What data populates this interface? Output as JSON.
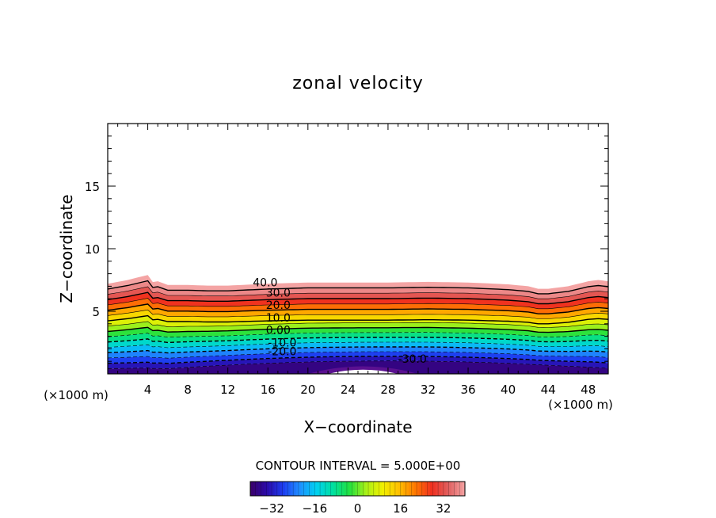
{
  "chart_data": {
    "type": "contour",
    "title": "zonal velocity",
    "xlabel": "X−coordinate",
    "ylabel": "Z−coordinate",
    "x_unit_left": "(×1000 m)",
    "x_unit_right": "(×1000 m)",
    "xlim": [
      0,
      50
    ],
    "ylim": [
      0,
      20
    ],
    "x_ticks": [
      4,
      8,
      12,
      16,
      20,
      24,
      28,
      32,
      36,
      40,
      44,
      48
    ],
    "y_ticks": [
      5,
      10,
      15
    ],
    "contour_interval_label": "CONTOUR INTERVAL = 5.000E+00",
    "contour_interval": 5.0,
    "contour_labels": [
      {
        "text": "40.0",
        "x": 14.5,
        "y": 7.3
      },
      {
        "text": "30.0",
        "x": 15.8,
        "y": 6.5
      },
      {
        "text": "20.0",
        "x": 15.8,
        "y": 5.5
      },
      {
        "text": "10.0",
        "x": 15.8,
        "y": 4.5
      },
      {
        "text": "0.00",
        "x": 15.8,
        "y": 3.5
      },
      {
        "text": "-10.0",
        "x": 16.0,
        "y": 2.5
      },
      {
        "text": "-20.0",
        "x": 16.0,
        "y": 1.8
      },
      {
        "text": "-30.0",
        "x": 29.0,
        "y": 1.2
      }
    ],
    "upper_boundary": {
      "x": [
        0,
        2,
        3,
        4,
        4.2,
        5,
        6,
        8,
        10,
        12,
        16,
        20,
        24,
        28,
        32,
        36,
        40,
        42,
        43,
        44,
        46,
        48,
        49,
        50
      ],
      "z": [
        7.2,
        7.5,
        7.7,
        7.9,
        7.3,
        7.4,
        7.1,
        7.1,
        7.05,
        7.05,
        7.2,
        7.3,
        7.3,
        7.3,
        7.35,
        7.3,
        7.15,
        7.0,
        6.8,
        6.8,
        7.0,
        7.4,
        7.5,
        7.4
      ]
    },
    "min_region": {
      "x_start": 20,
      "x_end": 31,
      "z_max": 0.6
    },
    "colorbar": {
      "min": -40,
      "max": 40,
      "ticks": [
        -32,
        -16,
        0,
        16,
        32
      ],
      "colors": [
        "#3a0068",
        "#2a0aa8",
        "#1d3df0",
        "#1e90ff",
        "#00d0f0",
        "#00e0a0",
        "#20e040",
        "#a8f018",
        "#f0f000",
        "#ffc000",
        "#ff7800",
        "#f03020",
        "#e06060",
        "#f4a4a4"
      ]
    }
  }
}
